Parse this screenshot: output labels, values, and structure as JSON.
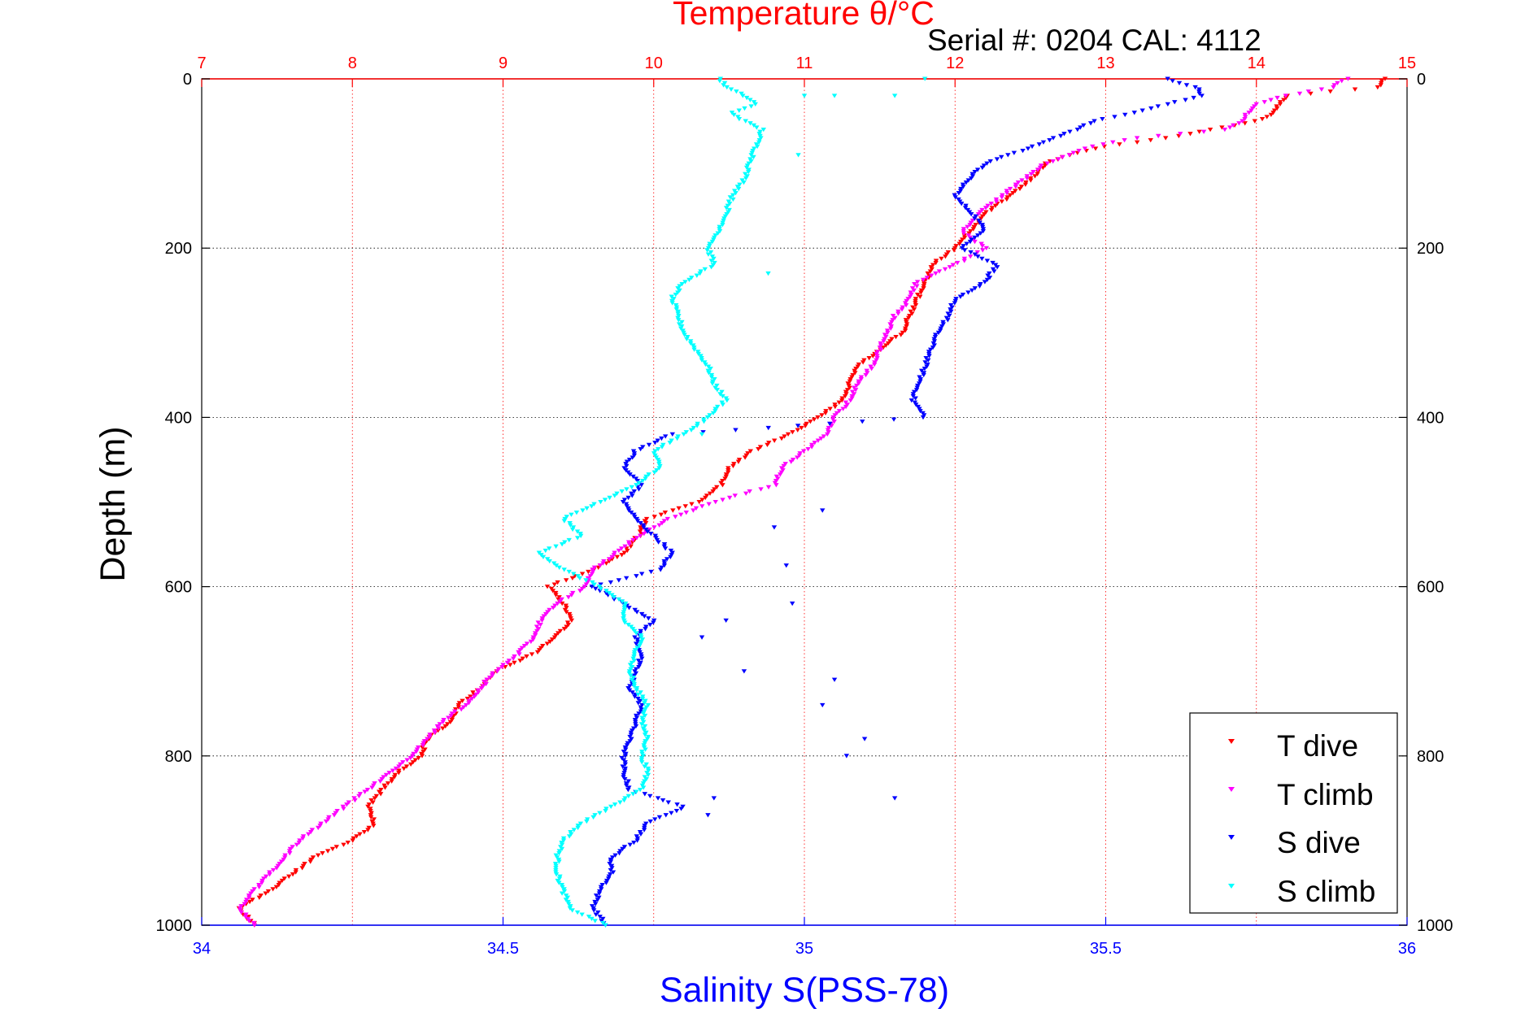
{
  "chart_data": {
    "type": "scatter",
    "title": "Temperature θ/°C",
    "subtitle": "Serial #: 0204  CAL: 4112",
    "xlabel": "Salinity S(PSS-78)",
    "ylabel": "Depth (m)",
    "x_top_ticks": [
      "7",
      "8",
      "9",
      "10",
      "11",
      "12",
      "13",
      "14",
      "15"
    ],
    "x_bottom_ticks": [
      "34",
      "34.5",
      "35",
      "35.5",
      "36"
    ],
    "y_ticks": [
      "0",
      "200",
      "400",
      "600",
      "800",
      "1000"
    ],
    "temperature_range": [
      7,
      15
    ],
    "salinity_range": [
      34,
      36
    ],
    "depth_range": [
      0,
      1000
    ],
    "y_reversed": true,
    "grid": true,
    "legend_position": "bottom-right",
    "colors": {
      "t_dive": "#ff0000",
      "t_climb": "#ff00ff",
      "s_dive": "#0000ff",
      "s_climb": "#00ffff",
      "top_axis": "#ff0000",
      "bottom_axis": "#0000ff"
    },
    "series": [
      {
        "name": "T dive",
        "axis": "temperature",
        "color": "#ff0000",
        "depth": [
          0,
          10,
          20,
          30,
          40,
          50,
          60,
          70,
          80,
          90,
          100,
          120,
          140,
          160,
          180,
          200,
          220,
          240,
          260,
          280,
          300,
          320,
          340,
          360,
          380,
          400,
          420,
          440,
          460,
          480,
          500,
          520,
          540,
          560,
          580,
          600,
          620,
          640,
          660,
          680,
          700,
          720,
          740,
          760,
          780,
          800,
          820,
          840,
          860,
          880,
          900,
          920,
          940,
          960,
          980,
          1000
        ],
        "values": [
          14.85,
          14.8,
          14.2,
          14.15,
          14.12,
          14.0,
          13.7,
          13.4,
          13.0,
          12.75,
          12.6,
          12.5,
          12.35,
          12.2,
          12.1,
          12.0,
          11.85,
          11.8,
          11.75,
          11.7,
          11.65,
          11.5,
          11.35,
          11.3,
          11.25,
          11.1,
          10.9,
          10.65,
          10.5,
          10.45,
          10.3,
          9.95,
          9.9,
          9.8,
          9.6,
          9.3,
          9.4,
          9.45,
          9.35,
          9.2,
          8.95,
          8.85,
          8.7,
          8.65,
          8.5,
          8.45,
          8.3,
          8.2,
          8.1,
          8.15,
          8.0,
          7.75,
          7.6,
          7.45,
          7.25,
          7.35
        ]
      },
      {
        "name": "T climb",
        "axis": "temperature",
        "color": "#ff00ff",
        "depth": [
          0,
          10,
          20,
          30,
          40,
          50,
          60,
          70,
          80,
          90,
          100,
          120,
          140,
          160,
          180,
          200,
          220,
          240,
          260,
          280,
          300,
          320,
          340,
          360,
          380,
          400,
          420,
          440,
          460,
          480,
          500,
          520,
          540,
          560,
          580,
          600,
          620,
          640,
          660,
          680,
          700,
          720,
          740,
          760,
          780,
          800,
          820,
          840,
          860,
          880,
          900,
          920,
          940,
          960,
          980,
          1000
        ],
        "values": [
          14.6,
          14.5,
          14.2,
          14.0,
          13.95,
          13.9,
          13.8,
          13.2,
          12.9,
          12.75,
          12.6,
          12.45,
          12.3,
          12.15,
          12.05,
          12.2,
          12.0,
          11.75,
          11.7,
          11.6,
          11.55,
          11.5,
          11.45,
          11.35,
          11.3,
          11.2,
          11.15,
          11.0,
          10.85,
          10.8,
          10.4,
          10.1,
          9.9,
          9.75,
          9.6,
          9.55,
          9.35,
          9.25,
          9.2,
          9.1,
          8.95,
          8.85,
          8.75,
          8.6,
          8.5,
          8.4,
          8.25,
          8.1,
          7.95,
          7.8,
          7.65,
          7.55,
          7.45,
          7.35,
          7.25,
          7.35
        ]
      },
      {
        "name": "S dive",
        "axis": "salinity",
        "color": "#0000ff",
        "depth": [
          0,
          10,
          20,
          30,
          40,
          50,
          60,
          80,
          100,
          120,
          140,
          160,
          180,
          200,
          220,
          240,
          260,
          280,
          300,
          320,
          340,
          360,
          380,
          400,
          420,
          440,
          460,
          480,
          500,
          520,
          540,
          560,
          580,
          600,
          620,
          640,
          660,
          680,
          700,
          720,
          740,
          760,
          780,
          800,
          820,
          840,
          860,
          880,
          900,
          920,
          940,
          960,
          980,
          1000
        ],
        "values": [
          35.6,
          35.65,
          35.66,
          35.6,
          35.55,
          35.48,
          35.45,
          35.38,
          35.3,
          35.27,
          35.25,
          35.28,
          35.3,
          35.26,
          35.32,
          35.3,
          35.25,
          35.24,
          35.22,
          35.21,
          35.2,
          35.19,
          35.18,
          35.2,
          34.78,
          34.72,
          34.7,
          34.73,
          34.7,
          34.72,
          34.75,
          34.78,
          34.76,
          34.65,
          34.7,
          34.75,
          34.72,
          34.73,
          34.72,
          34.71,
          34.73,
          34.72,
          34.71,
          34.7,
          34.7,
          34.71,
          34.8,
          34.74,
          34.72,
          34.68,
          34.68,
          34.66,
          34.65,
          34.67
        ]
      },
      {
        "name": "S climb",
        "axis": "salinity",
        "color": "#00ffff",
        "depth": [
          0,
          10,
          20,
          30,
          40,
          50,
          60,
          80,
          100,
          120,
          140,
          160,
          180,
          200,
          220,
          240,
          260,
          280,
          300,
          320,
          340,
          360,
          380,
          400,
          420,
          440,
          460,
          480,
          500,
          520,
          540,
          560,
          580,
          600,
          620,
          640,
          660,
          680,
          700,
          720,
          740,
          760,
          780,
          800,
          820,
          840,
          860,
          880,
          900,
          920,
          940,
          960,
          980,
          1000
        ],
        "values": [
          34.86,
          34.87,
          34.9,
          34.92,
          34.88,
          34.9,
          34.93,
          34.92,
          34.91,
          34.9,
          34.88,
          34.87,
          34.86,
          34.84,
          34.85,
          34.8,
          34.78,
          34.79,
          34.8,
          34.82,
          34.84,
          34.85,
          34.87,
          34.84,
          34.8,
          34.75,
          34.76,
          34.72,
          34.66,
          34.6,
          34.63,
          34.56,
          34.6,
          34.66,
          34.7,
          34.7,
          34.73,
          34.72,
          34.71,
          34.72,
          34.74,
          34.73,
          34.74,
          34.73,
          34.74,
          34.73,
          34.68,
          34.63,
          34.6,
          34.59,
          34.59,
          34.6,
          34.61,
          34.67
        ]
      }
    ],
    "outliers": {
      "s_dive": [
        [
          34.95,
          530
        ],
        [
          35.03,
          510
        ],
        [
          34.97,
          575
        ],
        [
          34.98,
          620
        ],
        [
          34.87,
          640
        ],
        [
          34.83,
          660
        ],
        [
          34.9,
          700
        ],
        [
          35.05,
          710
        ],
        [
          35.03,
          740
        ],
        [
          35.1,
          780
        ],
        [
          35.07,
          800
        ],
        [
          35.15,
          850
        ],
        [
          34.85,
          850
        ],
        [
          34.84,
          870
        ]
      ],
      "s_climb": [
        [
          35.0,
          20
        ],
        [
          35.05,
          20
        ],
        [
          35.15,
          20
        ],
        [
          35.2,
          0
        ],
        [
          34.99,
          90
        ],
        [
          34.94,
          230
        ],
        [
          34.83,
          420
        ]
      ]
    },
    "legend": [
      "T dive",
      "T climb",
      "S dive",
      "S climb"
    ]
  }
}
